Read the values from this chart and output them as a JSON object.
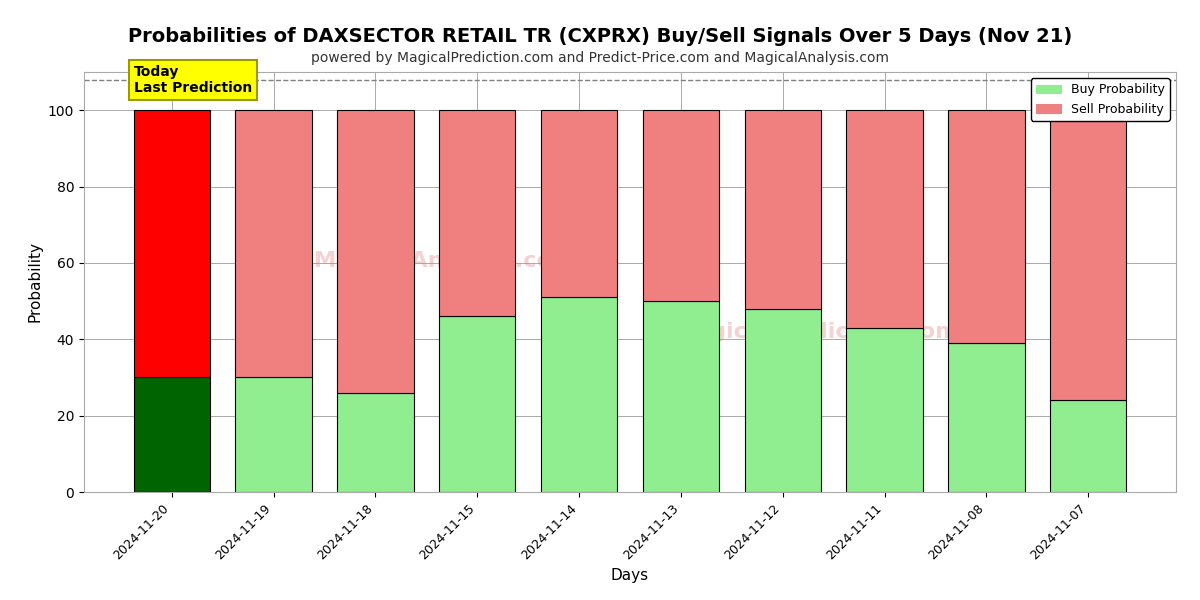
{
  "title": "Probabilities of DAXSECTOR RETAIL TR (CXPRX) Buy/Sell Signals Over 5 Days (Nov 21)",
  "subtitle": "powered by MagicalPrediction.com and Predict-Price.com and MagicalAnalysis.com",
  "xlabel": "Days",
  "ylabel": "Probability",
  "dates": [
    "2024-11-20",
    "2024-11-19",
    "2024-11-18",
    "2024-11-15",
    "2024-11-14",
    "2024-11-13",
    "2024-11-12",
    "2024-11-11",
    "2024-11-08",
    "2024-11-07"
  ],
  "buy_values": [
    30,
    30,
    26,
    46,
    51,
    50,
    48,
    43,
    39,
    24
  ],
  "sell_values": [
    70,
    70,
    74,
    54,
    49,
    50,
    52,
    57,
    61,
    76
  ],
  "today_bar_index": 0,
  "buy_color_today": "#006400",
  "sell_color_today": "#ff0000",
  "buy_color_other": "#90EE90",
  "sell_color_other": "#F08080",
  "bar_edge_color": "#000000",
  "today_label_bg": "#ffff00",
  "today_label_text": "Today\nLast Prediction",
  "legend_buy": "Buy Probability",
  "legend_sell": "Sell Probability",
  "ylim": [
    0,
    110
  ],
  "yticks": [
    0,
    20,
    40,
    60,
    80,
    100
  ],
  "dashed_line_y": 108,
  "grid_color": "#aaaaaa",
  "background_color": "#ffffff",
  "title_fontsize": 14,
  "subtitle_fontsize": 10
}
